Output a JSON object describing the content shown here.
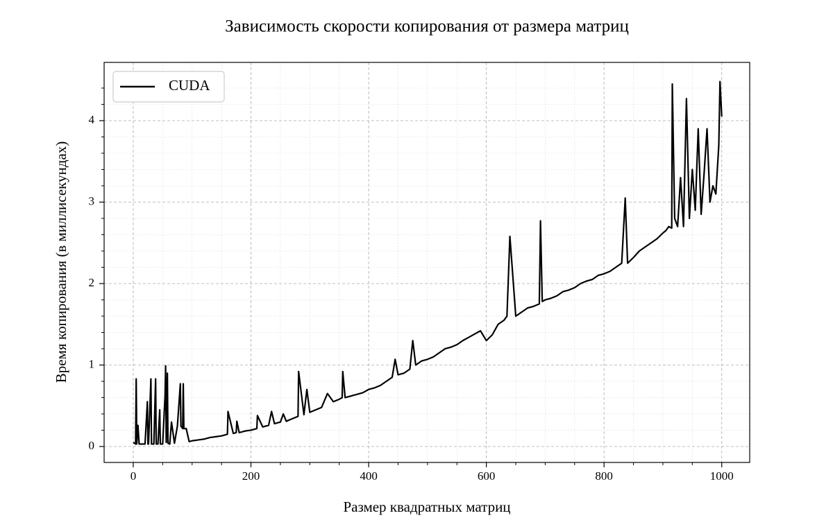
{
  "chart_data": {
    "type": "line",
    "title": "Зависимость скорости копирования от размера матриц",
    "x_label": "Размер квадратных матриц",
    "y_label": "Время копирования (в миллисекундах)",
    "x": [
      0,
      2,
      4,
      5,
      6,
      8,
      10,
      15,
      20,
      24,
      25,
      26,
      30,
      31,
      35,
      38,
      39,
      42,
      45,
      46,
      50,
      54,
      55,
      56,
      58,
      59,
      62,
      65,
      70,
      75,
      80,
      81,
      84,
      85,
      86,
      90,
      95,
      100,
      110,
      120,
      130,
      140,
      150,
      160,
      161,
      170,
      175,
      176,
      180,
      190,
      200,
      210,
      211,
      220,
      230,
      235,
      240,
      250,
      255,
      260,
      270,
      280,
      281,
      290,
      295,
      300,
      310,
      320,
      330,
      340,
      350,
      355,
      356,
      360,
      370,
      380,
      390,
      400,
      410,
      420,
      430,
      440,
      445,
      450,
      460,
      470,
      475,
      480,
      490,
      500,
      510,
      520,
      530,
      540,
      550,
      560,
      570,
      580,
      590,
      600,
      610,
      620,
      630,
      635,
      640,
      650,
      660,
      670,
      680,
      690,
      692,
      695,
      700,
      710,
      720,
      730,
      740,
      750,
      760,
      770,
      780,
      790,
      800,
      810,
      820,
      830,
      836,
      840,
      850,
      860,
      870,
      880,
      890,
      900,
      905,
      910,
      915,
      916,
      920,
      925,
      930,
      935,
      940,
      945,
      950,
      955,
      960,
      965,
      970,
      975,
      980,
      985,
      990,
      995,
      997,
      1000
    ],
    "series": [
      {
        "name": "CUDA",
        "color": "#000000",
        "values": [
          0.05,
          0.04,
          0.03,
          0.83,
          0.03,
          0.26,
          0.03,
          0.03,
          0.03,
          0.55,
          0.03,
          0.03,
          0.83,
          0.03,
          0.03,
          0.83,
          0.03,
          0.03,
          0.45,
          0.03,
          0.03,
          0.62,
          0.99,
          0.05,
          0.9,
          0.04,
          0.03,
          0.3,
          0.04,
          0.25,
          0.77,
          0.25,
          0.22,
          0.77,
          0.22,
          0.22,
          0.06,
          0.07,
          0.08,
          0.09,
          0.11,
          0.12,
          0.13,
          0.15,
          0.43,
          0.16,
          0.17,
          0.31,
          0.17,
          0.19,
          0.2,
          0.22,
          0.38,
          0.24,
          0.26,
          0.43,
          0.28,
          0.3,
          0.4,
          0.31,
          0.34,
          0.37,
          0.92,
          0.39,
          0.7,
          0.42,
          0.45,
          0.48,
          0.65,
          0.55,
          0.58,
          0.6,
          0.92,
          0.6,
          0.62,
          0.64,
          0.66,
          0.7,
          0.72,
          0.75,
          0.8,
          0.85,
          1.07,
          0.88,
          0.9,
          0.95,
          1.3,
          1.0,
          1.05,
          1.07,
          1.1,
          1.15,
          1.2,
          1.22,
          1.25,
          1.3,
          1.34,
          1.38,
          1.42,
          1.3,
          1.37,
          1.5,
          1.55,
          1.6,
          2.58,
          1.6,
          1.65,
          1.7,
          1.72,
          1.75,
          2.77,
          1.78,
          1.8,
          1.82,
          1.85,
          1.9,
          1.92,
          1.95,
          2.0,
          2.03,
          2.05,
          2.1,
          2.12,
          2.15,
          2.2,
          2.25,
          3.05,
          2.25,
          2.32,
          2.4,
          2.45,
          2.5,
          2.55,
          2.62,
          2.65,
          2.7,
          2.68,
          4.45,
          2.8,
          2.7,
          3.3,
          2.7,
          4.27,
          2.8,
          3.4,
          2.9,
          3.9,
          2.85,
          3.35,
          3.9,
          3.0,
          3.2,
          3.1,
          3.7,
          4.48,
          4.05
        ]
      }
    ],
    "xlim": [
      -49.5,
      1047.5
    ],
    "ylim": [
      -0.196,
      4.715
    ],
    "xticks": [
      0,
      200,
      400,
      600,
      800,
      1000
    ],
    "yticks": [
      0,
      1,
      2,
      3,
      4
    ],
    "xminorticks": [
      50,
      100,
      150,
      250,
      300,
      350,
      450,
      500,
      550,
      650,
      700,
      750,
      850,
      900,
      950
    ],
    "yminorticks": [
      0.2,
      0.4,
      0.6,
      0.8,
      1.2,
      1.4,
      1.6,
      1.8,
      2.2,
      2.4,
      2.6,
      2.8,
      3.2,
      3.4,
      3.6,
      3.8,
      4.2,
      4.4
    ],
    "grid": true,
    "minor_grid": true,
    "legend": "upper left"
  }
}
